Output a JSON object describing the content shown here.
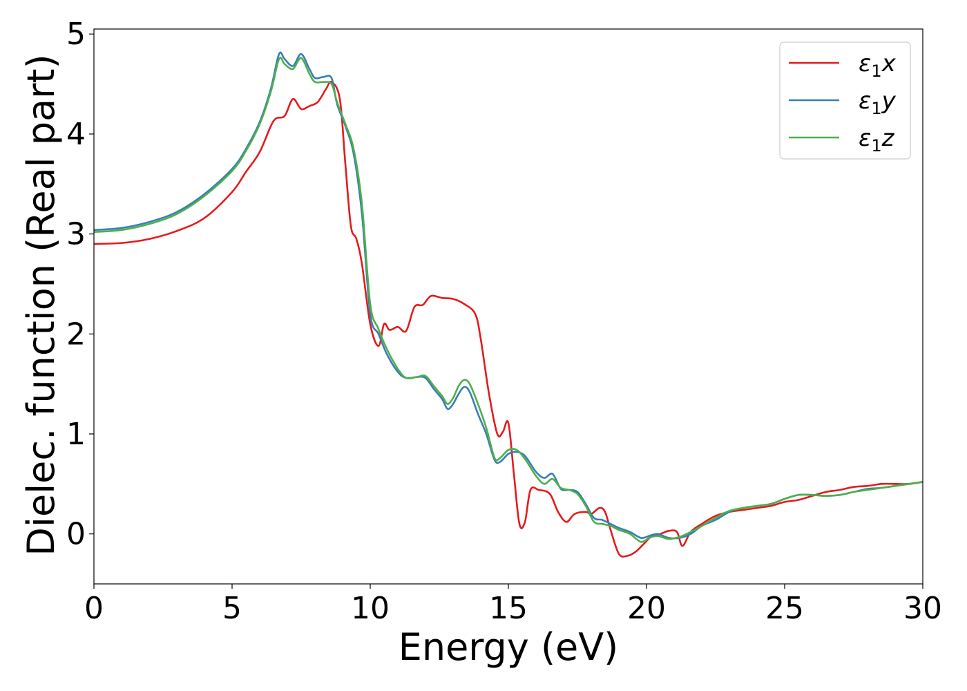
{
  "chart_data": {
    "type": "line",
    "title": "",
    "xlabel": "Energy (eV)",
    "ylabel": "Dielec. function (Real part)",
    "xlim": [
      0,
      30
    ],
    "ylim": [
      -0.5,
      5.05
    ],
    "xticks": [
      0,
      5,
      10,
      15,
      20,
      25,
      30
    ],
    "yticks": [
      0,
      1,
      2,
      3,
      4,
      5
    ],
    "grid": false,
    "legend_position": "top-right",
    "series": [
      {
        "name": "ε1x",
        "legend_base": "ε",
        "legend_sub": "1",
        "legend_var": "x",
        "color": "#e41a1c",
        "x": [
          0,
          1,
          2,
          3,
          4,
          5,
          5.5,
          6,
          6.5,
          6.9,
          7.2,
          7.5,
          7.8,
          8.1,
          8.4,
          8.6,
          8.9,
          9.1,
          9.3,
          9.5,
          9.7,
          10,
          10.3,
          10.5,
          10.7,
          11,
          11.3,
          11.6,
          11.9,
          12.2,
          12.6,
          13,
          13.4,
          13.8,
          14,
          14.3,
          14.6,
          14.8,
          15,
          15.2,
          15.4,
          15.6,
          15.8,
          16.1,
          16.5,
          16.8,
          17.1,
          17.4,
          17.8,
          18,
          18.3,
          18.5,
          18.7,
          19,
          19.3,
          19.6,
          19.9,
          20.2,
          20.5,
          20.8,
          21.1,
          21.3,
          21.6,
          22,
          22.5,
          23,
          23.5,
          24,
          24.5,
          25,
          25.5,
          26,
          26.5,
          27,
          27.5,
          28,
          28.5,
          29,
          29.5,
          30
        ],
        "y": [
          2.9,
          2.91,
          2.95,
          3.03,
          3.16,
          3.42,
          3.62,
          3.82,
          4.13,
          4.18,
          4.35,
          4.25,
          4.28,
          4.32,
          4.45,
          4.52,
          4.35,
          3.7,
          3.08,
          2.95,
          2.7,
          2.1,
          1.88,
          2.1,
          2.04,
          2.07,
          2.03,
          2.27,
          2.29,
          2.38,
          2.36,
          2.35,
          2.3,
          2.2,
          1.95,
          1.4,
          1.0,
          1.02,
          1.11,
          0.6,
          0.1,
          0.12,
          0.44,
          0.44,
          0.4,
          0.22,
          0.12,
          0.2,
          0.22,
          0.2,
          0.26,
          0.22,
          0.04,
          -0.2,
          -0.22,
          -0.18,
          -0.1,
          -0.02,
          0.0,
          0.03,
          0.02,
          -0.12,
          0.02,
          0.1,
          0.18,
          0.22,
          0.24,
          0.26,
          0.28,
          0.32,
          0.34,
          0.38,
          0.42,
          0.44,
          0.47,
          0.48,
          0.5,
          0.5,
          0.5,
          0.52
        ]
      },
      {
        "name": "ε1y",
        "legend_base": "ε",
        "legend_sub": "1",
        "legend_var": "y",
        "color": "#377eb8",
        "x": [
          0,
          1,
          2,
          3,
          4,
          5,
          5.5,
          6,
          6.4,
          6.7,
          6.9,
          7.2,
          7.5,
          7.8,
          8,
          8.3,
          8.6,
          8.8,
          9.1,
          9.4,
          9.7,
          10,
          10.3,
          10.6,
          11,
          11.3,
          11.7,
          12,
          12.3,
          12.6,
          12.8,
          13,
          13.2,
          13.4,
          13.6,
          13.9,
          14.2,
          14.5,
          14.7,
          15,
          15.3,
          15.6,
          16,
          16.3,
          16.6,
          16.9,
          17.2,
          17.5,
          17.8,
          18.1,
          18.4,
          18.7,
          19,
          19.4,
          19.8,
          20.1,
          20.4,
          20.8,
          21.2,
          21.6,
          22,
          22.5,
          23,
          23.5,
          24,
          24.5,
          25,
          25.5,
          26,
          26.5,
          27,
          27.5,
          28,
          28.5,
          29,
          29.5,
          30
        ],
        "y": [
          3.04,
          3.06,
          3.12,
          3.22,
          3.4,
          3.65,
          3.85,
          4.12,
          4.45,
          4.8,
          4.75,
          4.68,
          4.8,
          4.65,
          4.56,
          4.57,
          4.56,
          4.3,
          4.08,
          3.8,
          3.2,
          2.2,
          2.0,
          1.8,
          1.62,
          1.56,
          1.57,
          1.56,
          1.45,
          1.35,
          1.25,
          1.3,
          1.4,
          1.47,
          1.42,
          1.2,
          1.0,
          0.74,
          0.72,
          0.8,
          0.82,
          0.78,
          0.62,
          0.56,
          0.6,
          0.45,
          0.44,
          0.42,
          0.3,
          0.16,
          0.14,
          0.1,
          0.06,
          0.02,
          -0.04,
          -0.02,
          0.0,
          -0.04,
          -0.04,
          0.0,
          0.08,
          0.14,
          0.22,
          0.26,
          0.28,
          0.3,
          0.35,
          0.39,
          0.39,
          0.38,
          0.39,
          0.42,
          0.45,
          0.46,
          0.48,
          0.5,
          0.52
        ]
      },
      {
        "name": "ε1z",
        "legend_base": "ε",
        "legend_sub": "1",
        "legend_var": "z",
        "color": "#4daf4a",
        "x": [
          0,
          1,
          2,
          3,
          4,
          5,
          5.5,
          6,
          6.4,
          6.7,
          6.9,
          7.2,
          7.5,
          7.8,
          8,
          8.3,
          8.6,
          8.8,
          9.1,
          9.4,
          9.7,
          10,
          10.3,
          10.6,
          11,
          11.3,
          11.7,
          12,
          12.3,
          12.6,
          12.8,
          13,
          13.2,
          13.4,
          13.6,
          13.9,
          14.2,
          14.5,
          14.7,
          15,
          15.3,
          15.6,
          16,
          16.3,
          16.6,
          16.9,
          17.2,
          17.5,
          17.8,
          18.1,
          18.4,
          18.7,
          19,
          19.4,
          19.8,
          20.1,
          20.4,
          20.8,
          21.2,
          21.6,
          22,
          22.5,
          23,
          23.5,
          24,
          24.5,
          25,
          25.5,
          26,
          26.5,
          27,
          27.5,
          28,
          28.5,
          29,
          29.5,
          30
        ],
        "y": [
          3.02,
          3.04,
          3.1,
          3.2,
          3.38,
          3.63,
          3.83,
          4.1,
          4.42,
          4.75,
          4.7,
          4.65,
          4.76,
          4.6,
          4.52,
          4.52,
          4.5,
          4.32,
          4.1,
          3.85,
          3.3,
          2.3,
          2.05,
          1.85,
          1.65,
          1.56,
          1.57,
          1.58,
          1.48,
          1.38,
          1.3,
          1.36,
          1.48,
          1.54,
          1.5,
          1.3,
          1.06,
          0.76,
          0.76,
          0.84,
          0.84,
          0.75,
          0.58,
          0.5,
          0.55,
          0.46,
          0.44,
          0.4,
          0.28,
          0.12,
          0.1,
          0.08,
          0.04,
          0.0,
          -0.08,
          -0.04,
          -0.02,
          -0.05,
          -0.03,
          0.02,
          0.08,
          0.16,
          0.23,
          0.26,
          0.28,
          0.3,
          0.35,
          0.39,
          0.39,
          0.38,
          0.39,
          0.42,
          0.44,
          0.46,
          0.48,
          0.5,
          0.52
        ]
      }
    ]
  }
}
